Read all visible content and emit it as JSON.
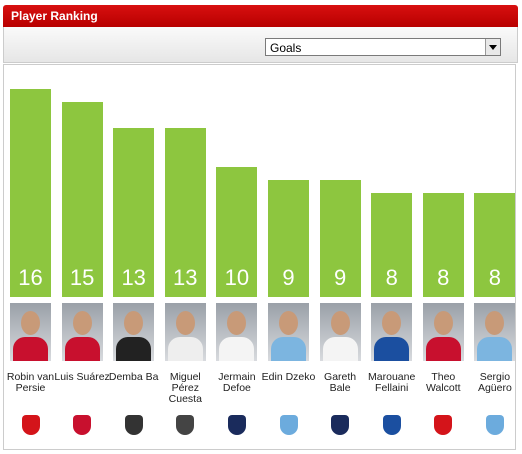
{
  "header": {
    "title": "Player Ranking",
    "selector": "Goals"
  },
  "chart_data": {
    "type": "bar",
    "categories": [
      "Robin van Persie",
      "Luis Suárez",
      "Demba Ba",
      "Miguel Pérez Cuesta",
      "Jermain Defoe",
      "Edin Dzeko",
      "Gareth Bale",
      "Marouane Fellaini",
      "Theo Walcott",
      "Sergio Agüero"
    ],
    "values": [
      16,
      15,
      13,
      13,
      10,
      9,
      9,
      8,
      8,
      8
    ],
    "color": "#8dc63f"
  }
}
